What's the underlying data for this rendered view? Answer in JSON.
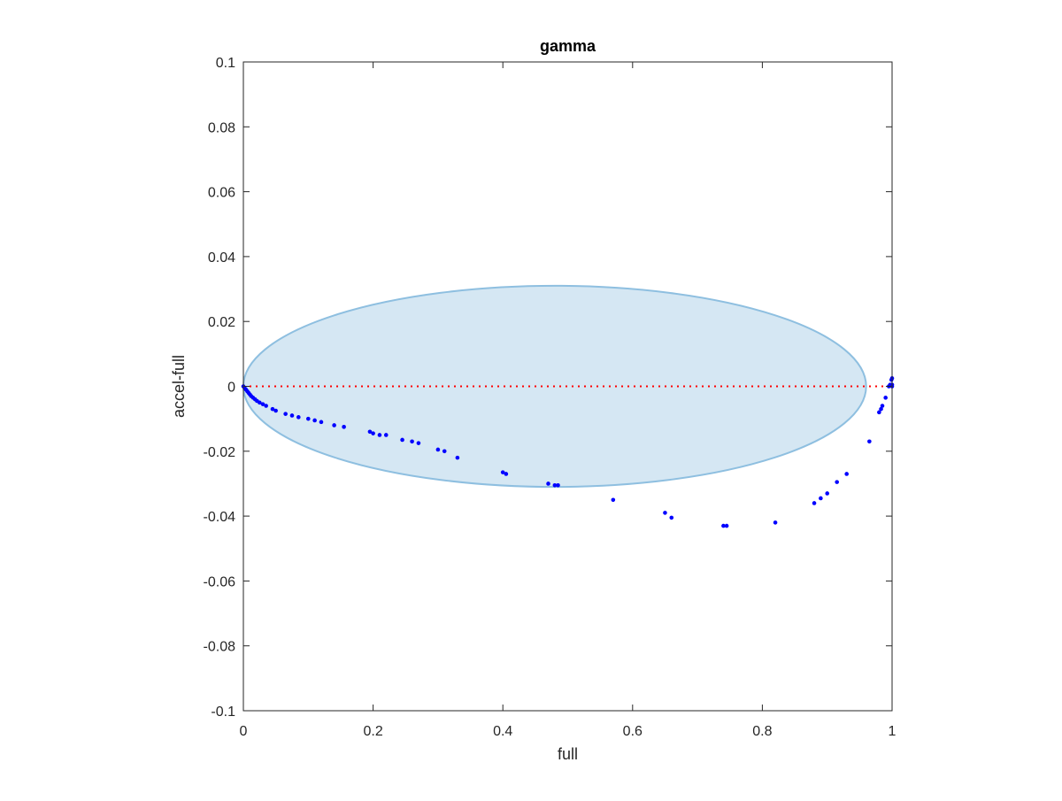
{
  "chart_data": {
    "type": "scatter",
    "title": "gamma",
    "xlabel": "full",
    "ylabel": "accel-full",
    "xlim": [
      0,
      1
    ],
    "ylim": [
      -0.1,
      0.1
    ],
    "xticks": [
      0,
      0.2,
      0.4,
      0.6,
      0.8,
      1
    ],
    "xtick_labels": [
      "0",
      "0.2",
      "0.4",
      "0.6",
      "0.8",
      "1"
    ],
    "yticks": [
      0.1,
      0.08,
      0.06,
      0.04,
      0.02,
      0,
      -0.02,
      -0.04,
      -0.06,
      -0.08,
      -0.1
    ],
    "ytick_labels": [
      "0.1",
      "0.08",
      "0.06",
      "0.04",
      "0.02",
      "0",
      "-0.02",
      "-0.04",
      "-0.06",
      "-0.08",
      "-0.1"
    ],
    "grid": false,
    "ellipse": {
      "center": [
        0.48,
        0
      ],
      "x_radius": 0.48,
      "y_radius": 0.031,
      "fill_color": "#d5e7f3",
      "edge_color": "#8ebfe0"
    },
    "reference_line": {
      "y": 0,
      "x_range": [
        0,
        1
      ],
      "color": "#ff0000",
      "style": "dotted"
    },
    "points_color": "#0000ff",
    "points": [
      [
        0.0,
        0.0
      ],
      [
        0.002,
        -0.0005
      ],
      [
        0.004,
        -0.001
      ],
      [
        0.006,
        -0.0015
      ],
      [
        0.008,
        -0.002
      ],
      [
        0.01,
        -0.0025
      ],
      [
        0.012,
        -0.003
      ],
      [
        0.015,
        -0.0035
      ],
      [
        0.018,
        -0.004
      ],
      [
        0.021,
        -0.0045
      ],
      [
        0.025,
        -0.005
      ],
      [
        0.03,
        -0.0055
      ],
      [
        0.035,
        -0.006
      ],
      [
        0.045,
        -0.007
      ],
      [
        0.05,
        -0.0075
      ],
      [
        0.065,
        -0.0085
      ],
      [
        0.075,
        -0.009
      ],
      [
        0.085,
        -0.0095
      ],
      [
        0.1,
        -0.01
      ],
      [
        0.11,
        -0.0105
      ],
      [
        0.12,
        -0.011
      ],
      [
        0.14,
        -0.012
      ],
      [
        0.155,
        -0.0125
      ],
      [
        0.195,
        -0.014
      ],
      [
        0.2,
        -0.0145
      ],
      [
        0.21,
        -0.015
      ],
      [
        0.22,
        -0.015
      ],
      [
        0.245,
        -0.0165
      ],
      [
        0.26,
        -0.017
      ],
      [
        0.27,
        -0.0175
      ],
      [
        0.3,
        -0.0195
      ],
      [
        0.31,
        -0.02
      ],
      [
        0.33,
        -0.022
      ],
      [
        0.4,
        -0.0265
      ],
      [
        0.405,
        -0.027
      ],
      [
        0.47,
        -0.03
      ],
      [
        0.48,
        -0.0305
      ],
      [
        0.485,
        -0.0305
      ],
      [
        0.57,
        -0.035
      ],
      [
        0.65,
        -0.039
      ],
      [
        0.66,
        -0.0405
      ],
      [
        0.74,
        -0.043
      ],
      [
        0.745,
        -0.043
      ],
      [
        0.82,
        -0.042
      ],
      [
        0.88,
        -0.036
      ],
      [
        0.89,
        -0.0345
      ],
      [
        0.9,
        -0.033
      ],
      [
        0.915,
        -0.0295
      ],
      [
        0.93,
        -0.027
      ],
      [
        0.965,
        -0.017
      ],
      [
        0.98,
        -0.008
      ],
      [
        0.983,
        -0.007
      ],
      [
        0.985,
        -0.006
      ],
      [
        0.99,
        -0.0035
      ],
      [
        0.995,
        0.0
      ],
      [
        0.997,
        0.0005
      ],
      [
        0.999,
        0.002
      ],
      [
        1.0,
        0.0
      ],
      [
        1.0,
        0.0005
      ],
      [
        1.0,
        0.0025
      ]
    ]
  }
}
